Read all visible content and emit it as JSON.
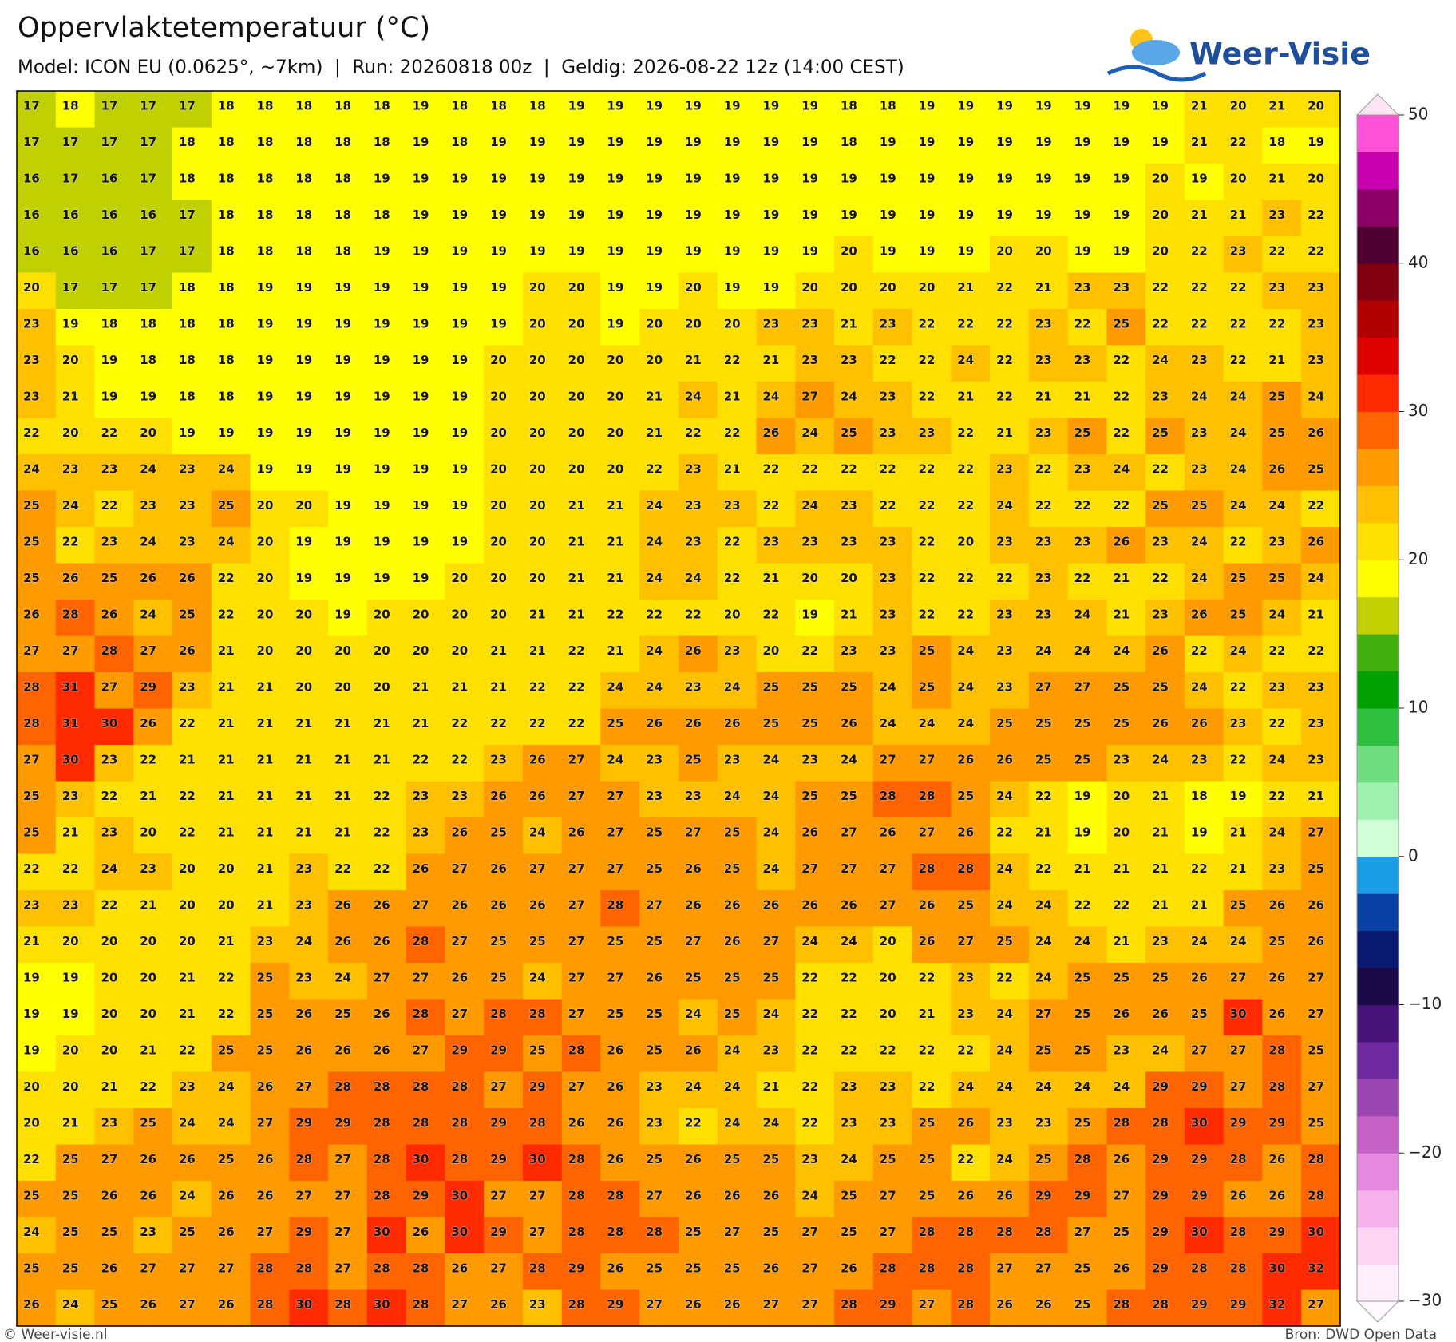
{
  "header": {
    "title": "Oppervlaktetemperatuur (°C)",
    "subtitle": "Model: ICON EU (0.0625°, ~7km)  |  Run: 20260818 00z  |  Geldig: 2026-08-22 12z (14:00 CEST)",
    "logo": "Weer-Visie"
  },
  "grid": {
    "rows": [
      [
        17,
        18,
        17,
        17,
        17,
        18,
        18,
        18,
        18,
        18,
        19,
        18,
        18,
        18,
        19,
        19,
        19,
        19,
        19,
        19,
        19,
        18,
        18,
        19,
        19,
        19,
        19,
        19,
        19,
        19,
        21,
        20,
        21,
        20
      ],
      [
        17,
        17,
        17,
        17,
        18,
        18,
        18,
        18,
        18,
        18,
        19,
        18,
        19,
        19,
        19,
        19,
        19,
        19,
        19,
        19,
        19,
        18,
        19,
        19,
        19,
        19,
        19,
        19,
        19,
        19,
        21,
        22,
        18,
        19
      ],
      [
        16,
        17,
        16,
        17,
        18,
        18,
        18,
        18,
        18,
        19,
        19,
        19,
        19,
        19,
        19,
        19,
        19,
        19,
        19,
        19,
        19,
        19,
        19,
        19,
        19,
        19,
        19,
        19,
        19,
        20,
        19,
        20,
        21,
        20
      ],
      [
        16,
        16,
        16,
        16,
        17,
        18,
        18,
        18,
        18,
        18,
        19,
        19,
        19,
        19,
        19,
        19,
        19,
        19,
        19,
        19,
        19,
        19,
        19,
        19,
        19,
        19,
        19,
        19,
        19,
        20,
        21,
        21,
        23,
        22
      ],
      [
        16,
        16,
        16,
        17,
        17,
        18,
        18,
        18,
        18,
        19,
        19,
        19,
        19,
        19,
        19,
        19,
        19,
        19,
        19,
        19,
        19,
        20,
        19,
        19,
        19,
        20,
        20,
        19,
        19,
        20,
        22,
        23,
        22,
        22
      ],
      [
        20,
        17,
        17,
        17,
        18,
        18,
        19,
        19,
        19,
        19,
        19,
        19,
        19,
        20,
        20,
        19,
        19,
        20,
        19,
        19,
        20,
        20,
        20,
        20,
        21,
        22,
        21,
        23,
        23,
        22,
        22,
        22,
        23,
        23
      ],
      [
        23,
        19,
        18,
        18,
        18,
        18,
        19,
        19,
        19,
        19,
        19,
        19,
        19,
        20,
        20,
        19,
        20,
        20,
        20,
        23,
        23,
        21,
        23,
        22,
        22,
        22,
        23,
        22,
        25,
        22,
        22,
        22,
        22,
        23
      ],
      [
        23,
        20,
        19,
        18,
        18,
        18,
        19,
        19,
        19,
        19,
        19,
        19,
        20,
        20,
        20,
        20,
        20,
        21,
        22,
        21,
        23,
        23,
        22,
        22,
        24,
        22,
        23,
        23,
        22,
        24,
        23,
        22,
        21,
        23
      ],
      [
        23,
        21,
        19,
        19,
        18,
        18,
        19,
        19,
        19,
        19,
        19,
        19,
        20,
        20,
        20,
        20,
        21,
        24,
        21,
        24,
        27,
        24,
        23,
        22,
        21,
        22,
        21,
        21,
        22,
        23,
        24,
        24,
        25,
        24
      ],
      [
        22,
        20,
        22,
        20,
        19,
        19,
        19,
        19,
        19,
        19,
        19,
        19,
        20,
        20,
        20,
        20,
        21,
        22,
        22,
        26,
        24,
        25,
        23,
        23,
        22,
        21,
        23,
        25,
        22,
        25,
        23,
        24,
        25,
        26
      ],
      [
        24,
        23,
        23,
        24,
        23,
        24,
        19,
        19,
        19,
        19,
        19,
        19,
        20,
        20,
        20,
        20,
        22,
        23,
        21,
        22,
        22,
        22,
        22,
        22,
        22,
        23,
        22,
        23,
        24,
        22,
        23,
        24,
        26,
        25
      ],
      [
        25,
        24,
        22,
        23,
        23,
        25,
        20,
        20,
        19,
        19,
        19,
        19,
        20,
        20,
        21,
        21,
        24,
        23,
        23,
        22,
        24,
        23,
        22,
        22,
        22,
        24,
        22,
        22,
        22,
        25,
        25,
        24,
        24,
        22
      ],
      [
        25,
        22,
        23,
        24,
        23,
        24,
        20,
        19,
        19,
        19,
        19,
        19,
        20,
        20,
        21,
        21,
        24,
        23,
        22,
        23,
        23,
        23,
        23,
        22,
        20,
        23,
        23,
        23,
        26,
        23,
        24,
        22,
        23,
        26
      ],
      [
        25,
        26,
        25,
        26,
        26,
        22,
        20,
        19,
        19,
        19,
        19,
        20,
        20,
        20,
        21,
        21,
        24,
        24,
        22,
        21,
        20,
        20,
        23,
        22,
        22,
        22,
        23,
        22,
        21,
        22,
        24,
        25,
        25,
        24
      ],
      [
        26,
        28,
        26,
        24,
        25,
        22,
        20,
        20,
        19,
        20,
        20,
        20,
        20,
        21,
        21,
        22,
        22,
        22,
        20,
        22,
        19,
        21,
        23,
        22,
        22,
        23,
        23,
        24,
        21,
        23,
        26,
        25,
        24,
        21
      ],
      [
        27,
        27,
        28,
        27,
        26,
        21,
        20,
        20,
        20,
        20,
        20,
        20,
        21,
        21,
        22,
        21,
        24,
        26,
        23,
        20,
        22,
        23,
        23,
        25,
        24,
        23,
        24,
        24,
        24,
        26,
        22,
        24,
        22,
        22
      ],
      [
        28,
        31,
        27,
        29,
        23,
        21,
        21,
        20,
        20,
        20,
        21,
        21,
        21,
        22,
        22,
        24,
        24,
        23,
        24,
        25,
        25,
        25,
        24,
        25,
        24,
        23,
        27,
        27,
        25,
        25,
        24,
        22,
        23,
        23
      ],
      [
        28,
        31,
        30,
        26,
        22,
        21,
        21,
        21,
        21,
        21,
        21,
        22,
        22,
        22,
        22,
        25,
        26,
        26,
        26,
        25,
        25,
        26,
        24,
        24,
        24,
        25,
        25,
        25,
        25,
        26,
        26,
        23,
        22,
        23
      ],
      [
        27,
        30,
        23,
        22,
        21,
        21,
        21,
        21,
        21,
        21,
        22,
        22,
        23,
        26,
        27,
        24,
        23,
        25,
        23,
        24,
        23,
        24,
        27,
        27,
        26,
        26,
        25,
        25,
        23,
        24,
        23,
        22,
        24,
        23
      ],
      [
        25,
        23,
        22,
        21,
        22,
        21,
        21,
        21,
        21,
        22,
        23,
        23,
        26,
        26,
        27,
        27,
        23,
        23,
        24,
        24,
        25,
        25,
        28,
        28,
        25,
        24,
        22,
        19,
        20,
        21,
        18,
        19,
        22,
        21
      ],
      [
        25,
        21,
        23,
        20,
        22,
        21,
        21,
        21,
        21,
        22,
        23,
        26,
        25,
        24,
        26,
        27,
        25,
        27,
        25,
        24,
        26,
        27,
        26,
        27,
        26,
        22,
        21,
        19,
        20,
        21,
        19,
        21,
        24,
        27
      ],
      [
        22,
        22,
        24,
        23,
        20,
        20,
        21,
        23,
        22,
        22,
        26,
        27,
        26,
        27,
        27,
        27,
        25,
        26,
        25,
        24,
        27,
        27,
        27,
        28,
        28,
        24,
        22,
        21,
        21,
        21,
        22,
        21,
        23,
        25
      ],
      [
        23,
        23,
        22,
        21,
        20,
        20,
        21,
        23,
        26,
        26,
        27,
        26,
        26,
        26,
        27,
        28,
        27,
        26,
        26,
        26,
        26,
        26,
        27,
        26,
        25,
        24,
        24,
        22,
        22,
        21,
        21,
        25,
        26,
        26
      ],
      [
        21,
        20,
        20,
        20,
        20,
        21,
        23,
        24,
        26,
        26,
        28,
        27,
        25,
        25,
        27,
        25,
        25,
        27,
        26,
        27,
        24,
        24,
        20,
        26,
        27,
        25,
        24,
        24,
        21,
        23,
        24,
        24,
        25,
        26
      ],
      [
        19,
        19,
        20,
        20,
        21,
        22,
        25,
        23,
        24,
        27,
        27,
        26,
        25,
        24,
        27,
        27,
        26,
        25,
        25,
        25,
        22,
        22,
        20,
        22,
        23,
        22,
        24,
        25,
        25,
        25,
        26,
        27,
        26,
        27
      ],
      [
        19,
        19,
        20,
        20,
        21,
        22,
        25,
        26,
        25,
        26,
        28,
        27,
        28,
        28,
        27,
        25,
        25,
        24,
        25,
        24,
        22,
        22,
        20,
        21,
        23,
        24,
        27,
        25,
        26,
        26,
        25,
        30,
        26,
        27
      ],
      [
        19,
        20,
        20,
        21,
        22,
        25,
        25,
        26,
        26,
        26,
        27,
        29,
        29,
        25,
        28,
        26,
        25,
        26,
        24,
        23,
        22,
        22,
        22,
        22,
        22,
        24,
        25,
        25,
        23,
        24,
        27,
        27,
        28,
        25
      ],
      [
        20,
        20,
        21,
        22,
        23,
        24,
        26,
        27,
        28,
        28,
        28,
        28,
        27,
        29,
        27,
        26,
        23,
        24,
        24,
        21,
        22,
        23,
        23,
        22,
        24,
        24,
        24,
        24,
        24,
        29,
        29,
        27,
        28,
        27
      ],
      [
        20,
        21,
        23,
        25,
        24,
        24,
        27,
        29,
        29,
        28,
        28,
        28,
        29,
        28,
        26,
        26,
        23,
        22,
        24,
        24,
        22,
        23,
        23,
        25,
        26,
        23,
        23,
        25,
        28,
        28,
        30,
        29,
        29,
        25
      ],
      [
        22,
        25,
        27,
        26,
        26,
        25,
        26,
        28,
        27,
        28,
        30,
        28,
        29,
        30,
        28,
        26,
        25,
        26,
        25,
        25,
        23,
        24,
        25,
        25,
        22,
        24,
        25,
        28,
        26,
        29,
        29,
        28,
        26,
        28
      ],
      [
        25,
        25,
        26,
        26,
        24,
        26,
        26,
        27,
        27,
        28,
        29,
        30,
        27,
        27,
        28,
        28,
        27,
        26,
        26,
        26,
        24,
        25,
        27,
        25,
        26,
        26,
        29,
        29,
        27,
        29,
        29,
        26,
        26,
        28
      ],
      [
        24,
        25,
        25,
        23,
        25,
        26,
        27,
        29,
        27,
        30,
        26,
        30,
        29,
        27,
        28,
        28,
        28,
        25,
        27,
        25,
        27,
        25,
        27,
        28,
        28,
        28,
        28,
        27,
        25,
        29,
        30,
        28,
        29,
        30
      ],
      [
        25,
        25,
        26,
        27,
        27,
        27,
        28,
        28,
        27,
        28,
        28,
        26,
        27,
        28,
        29,
        26,
        25,
        25,
        25,
        26,
        27,
        26,
        28,
        28,
        28,
        27,
        27,
        25,
        26,
        29,
        28,
        28,
        30,
        32
      ],
      [
        26,
        24,
        25,
        26,
        27,
        26,
        28,
        30,
        28,
        30,
        28,
        27,
        26,
        23,
        28,
        29,
        27,
        26,
        26,
        27,
        27,
        28,
        29,
        27,
        28,
        26,
        26,
        25,
        28,
        28,
        29,
        29,
        32,
        27
      ]
    ]
  },
  "colorbar": {
    "clim": [
      -30,
      50
    ],
    "ticks": [
      50,
      40,
      30,
      20,
      10,
      0,
      {
        "value": -10,
        "label": "−10"
      },
      {
        "value": -20,
        "label": "−20"
      },
      {
        "value": -30,
        "label": "−30"
      }
    ],
    "colors": [
      "#fff0fb",
      "#fcd6f2",
      "#f6b0ea",
      "#e68ae0",
      "#c462c8",
      "#9c46b4",
      "#70289e",
      "#461478",
      "#1c0a48",
      "#0a1a70",
      "#0840a4",
      "#1a9ee6",
      "#d0ffd8",
      "#a0f0b0",
      "#70dc80",
      "#30c040",
      "#00a000",
      "#44b010",
      "#c0d000",
      "#ffff00",
      "#ffe000",
      "#ffc000",
      "#ff9a00",
      "#ff6400",
      "#ff2a00",
      "#e00000",
      "#b00000",
      "#800010",
      "#500030",
      "#8a0064",
      "#c800b0",
      "#ff50d8"
    ]
  },
  "footer": {
    "credit": "© Weer-visie.nl",
    "source": "Bron: DWD Open Data"
  }
}
